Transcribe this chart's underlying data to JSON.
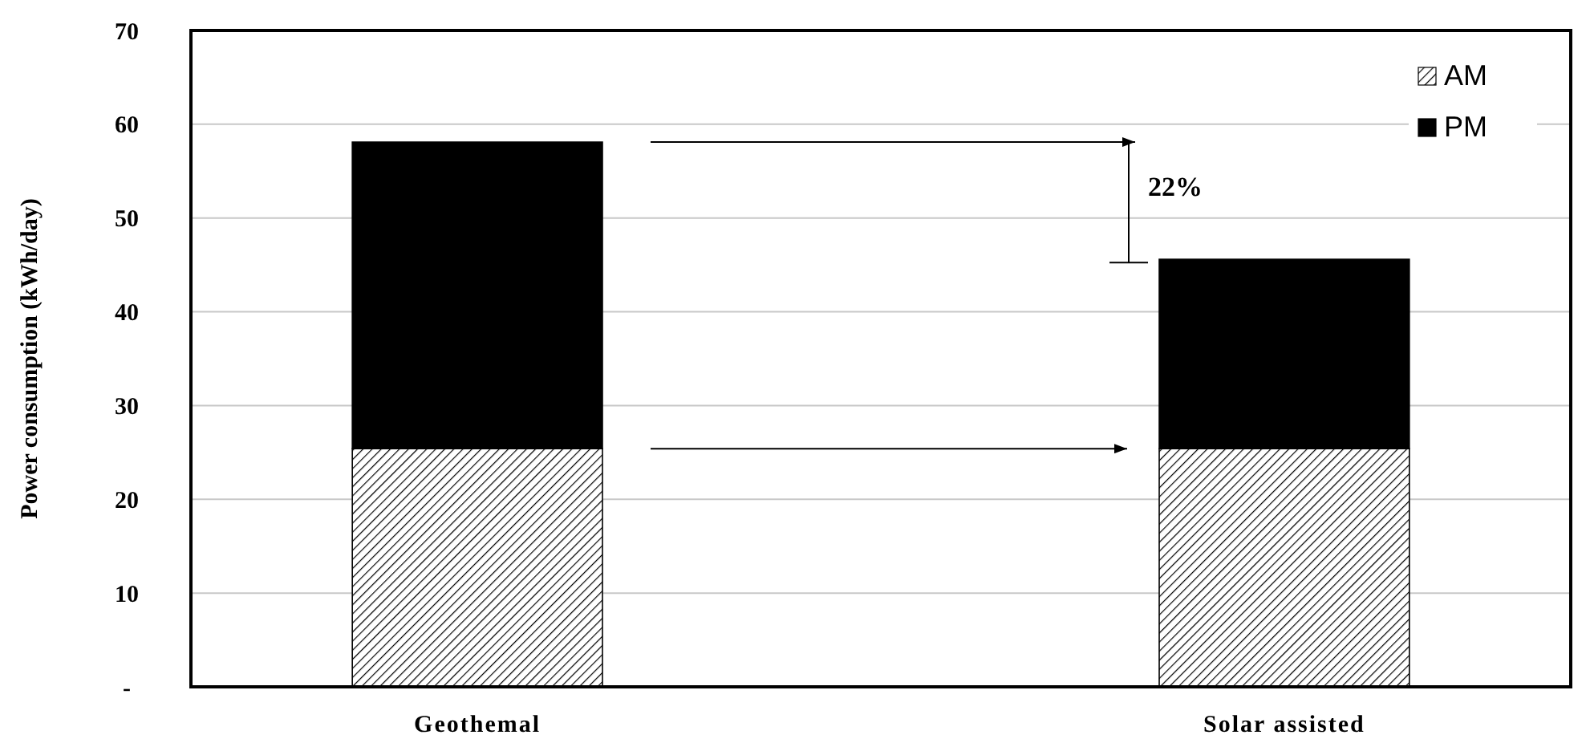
{
  "chart_data": {
    "type": "bar",
    "stacked": true,
    "ylabel": "Power consumption  (kWh/day)",
    "categories": [
      "Geothemal",
      "Solar assisted"
    ],
    "series": [
      {
        "name": "AM",
        "color": "#000000",
        "values": [
          25.4,
          25.4
        ]
      },
      {
        "name": "PM",
        "color": "#000000",
        "values": [
          32.7,
          20.2
        ]
      }
    ],
    "ylim": [
      0,
      70
    ],
    "yticks": [
      {
        "value": 0,
        "label": "-"
      },
      10,
      20,
      30,
      40,
      50,
      60,
      70
    ],
    "grid": "y",
    "legend": "top right",
    "annotations": [
      "22%"
    ]
  }
}
